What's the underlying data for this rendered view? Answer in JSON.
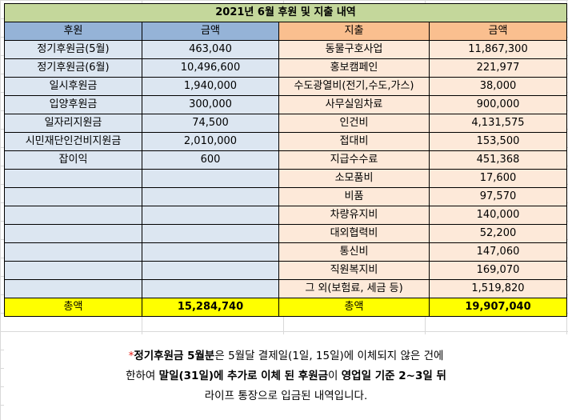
{
  "title": "2021년 6월 후원 및 지출 내역",
  "headers": {
    "donation": "후원",
    "donation_amount": "금액",
    "expense": "지출",
    "expense_amount": "금액"
  },
  "donations": [
    {
      "label": "정기후원금(5월)",
      "amount": "463,040"
    },
    {
      "label": "정기후원금(6월)",
      "amount": "10,496,600"
    },
    {
      "label": "일시후원금",
      "amount": "1,940,000"
    },
    {
      "label": "입양후원금",
      "amount": "300,000"
    },
    {
      "label": "일자리지원금",
      "amount": "74,500"
    },
    {
      "label": "시민재단인건비지원금",
      "amount": "2,010,000"
    },
    {
      "label": "잡이익",
      "amount": "600"
    }
  ],
  "expenses": [
    {
      "label": "동물구호사업",
      "amount": "11,867,300"
    },
    {
      "label": "홍보캠페인",
      "amount": "221,977"
    },
    {
      "label": "수도광열비(전기,수도,가스)",
      "amount": "38,000"
    },
    {
      "label": "사무실임차료",
      "amount": "900,000"
    },
    {
      "label": "인건비",
      "amount": "4,131,575"
    },
    {
      "label": "접대비",
      "amount": "153,500"
    },
    {
      "label": "지급수수료",
      "amount": "451,368"
    },
    {
      "label": "소모품비",
      "amount": "17,600"
    },
    {
      "label": "비품",
      "amount": "97,570"
    },
    {
      "label": "차량유지비",
      "amount": "140,000"
    },
    {
      "label": "대외협력비",
      "amount": "52,200"
    },
    {
      "label": "통신비",
      "amount": "147,060"
    },
    {
      "label": "직원복지비",
      "amount": "169,070"
    },
    {
      "label": "그 외(보험료, 세금 등)",
      "amount": "1,519,820"
    }
  ],
  "totals": {
    "donation_label": "총액",
    "donation_total": "15,284,740",
    "expense_label": "총액",
    "expense_total": "19,907,040"
  },
  "note": {
    "asterisk": "*",
    "l1_b1": "정기후원금 5월분",
    "l1_t1": "은 5월달 결제일(1일, 15일)에 이체되지 않은 건에",
    "l2_t1": "한하여 ",
    "l2_b1": "말일(31일)에 추가로 이체 된 후원금",
    "l2_t2": "이 ",
    "l2_b2": "영업일 기준 2~3일 뒤",
    "l3_t1": "라이프 통장으로 입금된 내역입니다."
  },
  "colors": {
    "title_bg": "#c4d79b",
    "donation_header_bg": "#95b3d7",
    "donation_cell_bg": "#dce6f1",
    "expense_header_bg": "#fabf8f",
    "expense_cell_bg": "#fde9d9",
    "total_bg": "#ffff00",
    "asterisk": "#e8221b"
  }
}
